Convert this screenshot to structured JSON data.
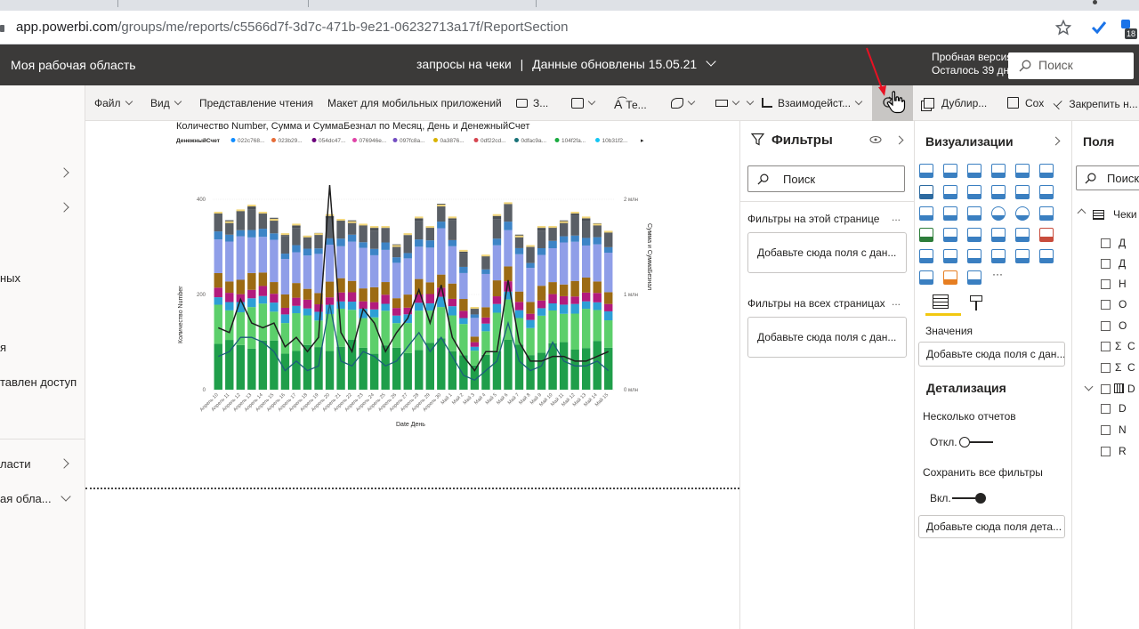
{
  "browser": {
    "url_host": "app.powerbi.com",
    "url_path": "/groups/me/reports/c5566d7f-3d7c-471b-9e21-06232713a17f/ReportSection",
    "ext_badge": "18"
  },
  "header": {
    "workspace": "Моя рабочая область",
    "report": "запросы на чеки",
    "separator": "|",
    "updated": "Данные обновлены 15.05.21",
    "trial_line1": "Пробная версия:",
    "trial_line2": "Осталось 39 дн.",
    "search_placeholder": "Поиск"
  },
  "toolbar": {
    "file": "Файл",
    "view": "Вид",
    "reading_view": "Представление чтения",
    "mobile_layout": "Макет для мобильных приложений",
    "comments": "З...",
    "text": "Те...",
    "interactions": "Взаимодейст...",
    "duplicate": "Дублир...",
    "save": "Сох",
    "pin": "Закрепить н..."
  },
  "leftnav": {
    "item1": "ных",
    "item2": "я",
    "item3": "тавлен доступ",
    "item4": "ласти",
    "item5": "ая обла..."
  },
  "chart_data": {
    "type": "bar",
    "title": "Количество Number, Сумма и СуммаБезнал по Месяц, День и ДенежныйСчет",
    "legend_title": "ДенежныйСчет",
    "legend": [
      "022c768...",
      "023b29...",
      "054dc47...",
      "076946e...",
      "097fc8a...",
      "0a3876...",
      "0df22cd...",
      "0dfac9a...",
      "104f2fa...",
      "10b31f2..."
    ],
    "legend_colors": [
      "#118dff",
      "#e66c37",
      "#6b007b",
      "#e044a7",
      "#744ec2",
      "#d9b300",
      "#d64550",
      "#197278",
      "#1aab40",
      "#15c6f4"
    ],
    "xlabel": "Date День",
    "ylabel": "Количество Number",
    "y2label": "Сумма и СуммаБезнал",
    "ylim": [
      0,
      400
    ],
    "y_ticks": [
      "0",
      "200",
      "400"
    ],
    "y2_ticks": [
      "0 млн",
      "1 млн",
      "2 млн"
    ],
    "categories": [
      "Апрель 10",
      "Апрель 11",
      "Апрель 12",
      "Апрель 13",
      "Апрель 14",
      "Апрель 15",
      "Апрель 16",
      "Апрель 17",
      "Апрель 18",
      "Апрель 19",
      "Апрель 20",
      "Апрель 21",
      "Апрель 22",
      "Апрель 23",
      "Апрель 24",
      "Апрель 25",
      "Апрель 26",
      "Апрель 27",
      "Апрель 28",
      "Апрель 29",
      "Апрель 30",
      "Май 1",
      "Май 2",
      "Май 3",
      "Май 4",
      "Май 5",
      "Май 6",
      "Май 7",
      "Май 8",
      "Май 9",
      "Май 10",
      "Май 11",
      "Май 12",
      "Май 13",
      "Май 14",
      "Май 15"
    ],
    "totals": [
      370,
      350,
      375,
      385,
      370,
      355,
      325,
      345,
      320,
      325,
      365,
      355,
      350,
      345,
      340,
      340,
      300,
      325,
      360,
      340,
      385,
      360,
      290,
      170,
      280,
      365,
      390,
      320,
      300,
      340,
      340,
      350,
      370,
      360,
      345,
      330
    ],
    "line1_mln": [
      0.65,
      0.6,
      0.95,
      0.7,
      0.65,
      0.7,
      0.45,
      0.55,
      0.4,
      0.55,
      2.15,
      0.6,
      0.4,
      0.85,
      0.7,
      0.4,
      0.6,
      0.75,
      1.05,
      0.7,
      1.1,
      0.55,
      0.35,
      0.2,
      0.4,
      0.4,
      1.15,
      0.5,
      0.3,
      0.3,
      0.35,
      0.35,
      0.3,
      0.3,
      0.35,
      0.4
    ],
    "line2_mln": [
      0.35,
      0.4,
      0.55,
      0.55,
      0.5,
      0.4,
      0.2,
      0.3,
      0.2,
      0.25,
      0.9,
      0.3,
      0.25,
      0.4,
      0.35,
      0.25,
      0.3,
      0.45,
      0.6,
      0.4,
      0.55,
      0.35,
      0.15,
      0.1,
      0.2,
      0.3,
      0.7,
      0.3,
      0.2,
      0.25,
      0.5,
      0.3,
      0.25,
      0.25,
      0.3,
      0.2
    ]
  },
  "filters": {
    "title": "Фильтры",
    "search": "Поиск",
    "on_page": "Фильтры на этой странице",
    "on_page_well": "Добавьте сюда поля с дан...",
    "all_pages": "Фильтры на всех страницах",
    "all_pages_well": "Добавьте сюда поля с дан...",
    "more": "..."
  },
  "viz": {
    "title": "Визуализации",
    "values": "Значения",
    "values_well": "Добавьте сюда поля с дан...",
    "drill": "Детализация",
    "multi_reports": "Несколько отчетов",
    "off": "Откл.",
    "keep_filters": "Сохранить все фильтры",
    "on": "Вкл.",
    "drill_well": "Добавьте сюда поля дета...",
    "more": "···"
  },
  "fields": {
    "title": "Поля",
    "search": "Поиск",
    "table": "Чеки",
    "items": [
      "Д",
      "Д",
      "Н",
      "О",
      "О",
      "С",
      "С",
      "D",
      "D",
      "N",
      "R"
    ]
  }
}
